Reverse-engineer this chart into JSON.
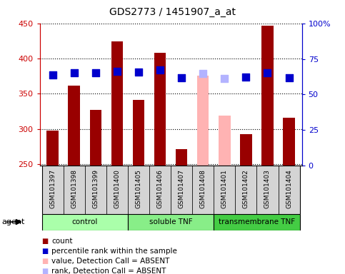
{
  "title": "GDS2773 / 1451907_a_at",
  "samples": [
    "GSM101397",
    "GSM101398",
    "GSM101399",
    "GSM101400",
    "GSM101405",
    "GSM101406",
    "GSM101407",
    "GSM101408",
    "GSM101401",
    "GSM101402",
    "GSM101403",
    "GSM101404"
  ],
  "counts": [
    298,
    362,
    327,
    424,
    341,
    408,
    272,
    376,
    319,
    293,
    447,
    316
  ],
  "ranks": [
    377,
    380,
    380,
    382,
    381,
    384,
    373,
    379,
    372,
    374,
    380,
    373
  ],
  "absent_flags": [
    false,
    false,
    false,
    false,
    false,
    false,
    false,
    true,
    true,
    false,
    false,
    false
  ],
  "bar_color_present": "#990000",
  "bar_color_absent": "#ffb3b3",
  "rank_color_present": "#0000cc",
  "rank_color_absent": "#b3b3ff",
  "groups": [
    {
      "label": "control",
      "start": 0,
      "end": 4,
      "color": "#aaffaa"
    },
    {
      "label": "soluble TNF",
      "start": 4,
      "end": 8,
      "color": "#88ee88"
    },
    {
      "label": "transmembrane TNF",
      "start": 8,
      "end": 12,
      "color": "#44cc44"
    }
  ],
  "ylim_left": [
    248,
    450
  ],
  "ylim_right": [
    0,
    100
  ],
  "yticks_left": [
    250,
    300,
    350,
    400,
    450
  ],
  "yticks_right": [
    0,
    25,
    50,
    75,
    100
  ],
  "left_tick_color": "#cc0000",
  "right_tick_color": "#0000cc",
  "bar_width": 0.55,
  "rank_marker_size": 48,
  "title_fontsize": 10,
  "label_fontsize": 6.5,
  "group_fontsize": 7.5,
  "legend_fontsize": 7.5,
  "agent_fontsize": 8
}
